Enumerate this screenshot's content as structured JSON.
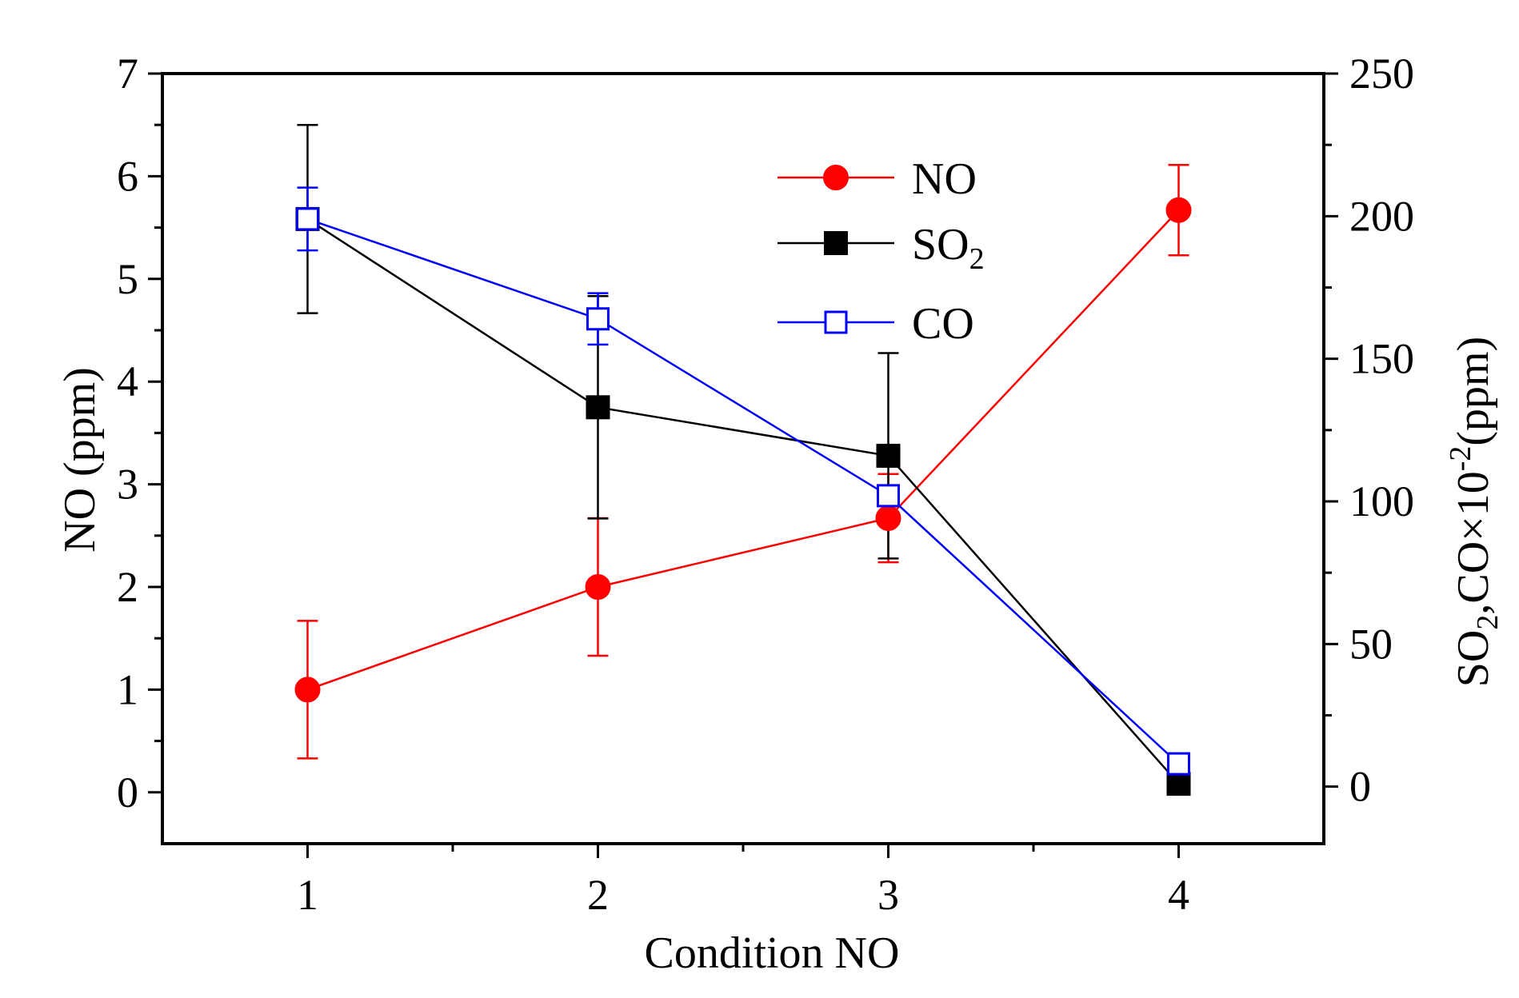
{
  "chart_data": {
    "type": "line",
    "title": "",
    "xlabel": "Condition NO",
    "ylabel_left": "NO (ppm)",
    "ylabel_right": {
      "prefix": "SO",
      "sub1": "2",
      "middle": ",CO×10",
      "sup": "-2",
      "suffix": "(ppm)"
    },
    "x": [
      1,
      2,
      3,
      4
    ],
    "x_ticks": [
      "1",
      "2",
      "3",
      "4"
    ],
    "xlim": [
      0.5,
      4.5
    ],
    "ylim_left": [
      -0.5,
      7
    ],
    "ylim_right": [
      -20,
      250
    ],
    "y_left_ticks": [
      "0",
      "1",
      "2",
      "3",
      "4",
      "5",
      "6",
      "7"
    ],
    "y_right_ticks": [
      "0",
      "50",
      "100",
      "150",
      "200",
      "250"
    ],
    "legend_position": "upper-center",
    "series": [
      {
        "name": "NO",
        "axis": "left",
        "color": "#ff0000",
        "marker": "filled-circle",
        "values": [
          1.0,
          2.0,
          2.67,
          5.67
        ],
        "errors": [
          0.67,
          0.67,
          0.43,
          0.44
        ],
        "legend": {
          "text": "NO"
        }
      },
      {
        "name": "SO2",
        "axis": "right",
        "color": "#000000",
        "marker": "filled-square",
        "values": [
          199,
          133,
          116,
          1
        ],
        "errors": [
          33,
          39,
          36,
          0
        ],
        "legend": {
          "text": "SO",
          "sub": "2"
        }
      },
      {
        "name": "CO",
        "axis": "right",
        "color": "#0000ff",
        "marker": "open-square",
        "values": [
          199,
          164,
          102,
          8
        ],
        "errors": [
          11,
          9,
          0,
          3
        ],
        "legend": {
          "text": "CO"
        }
      }
    ]
  }
}
